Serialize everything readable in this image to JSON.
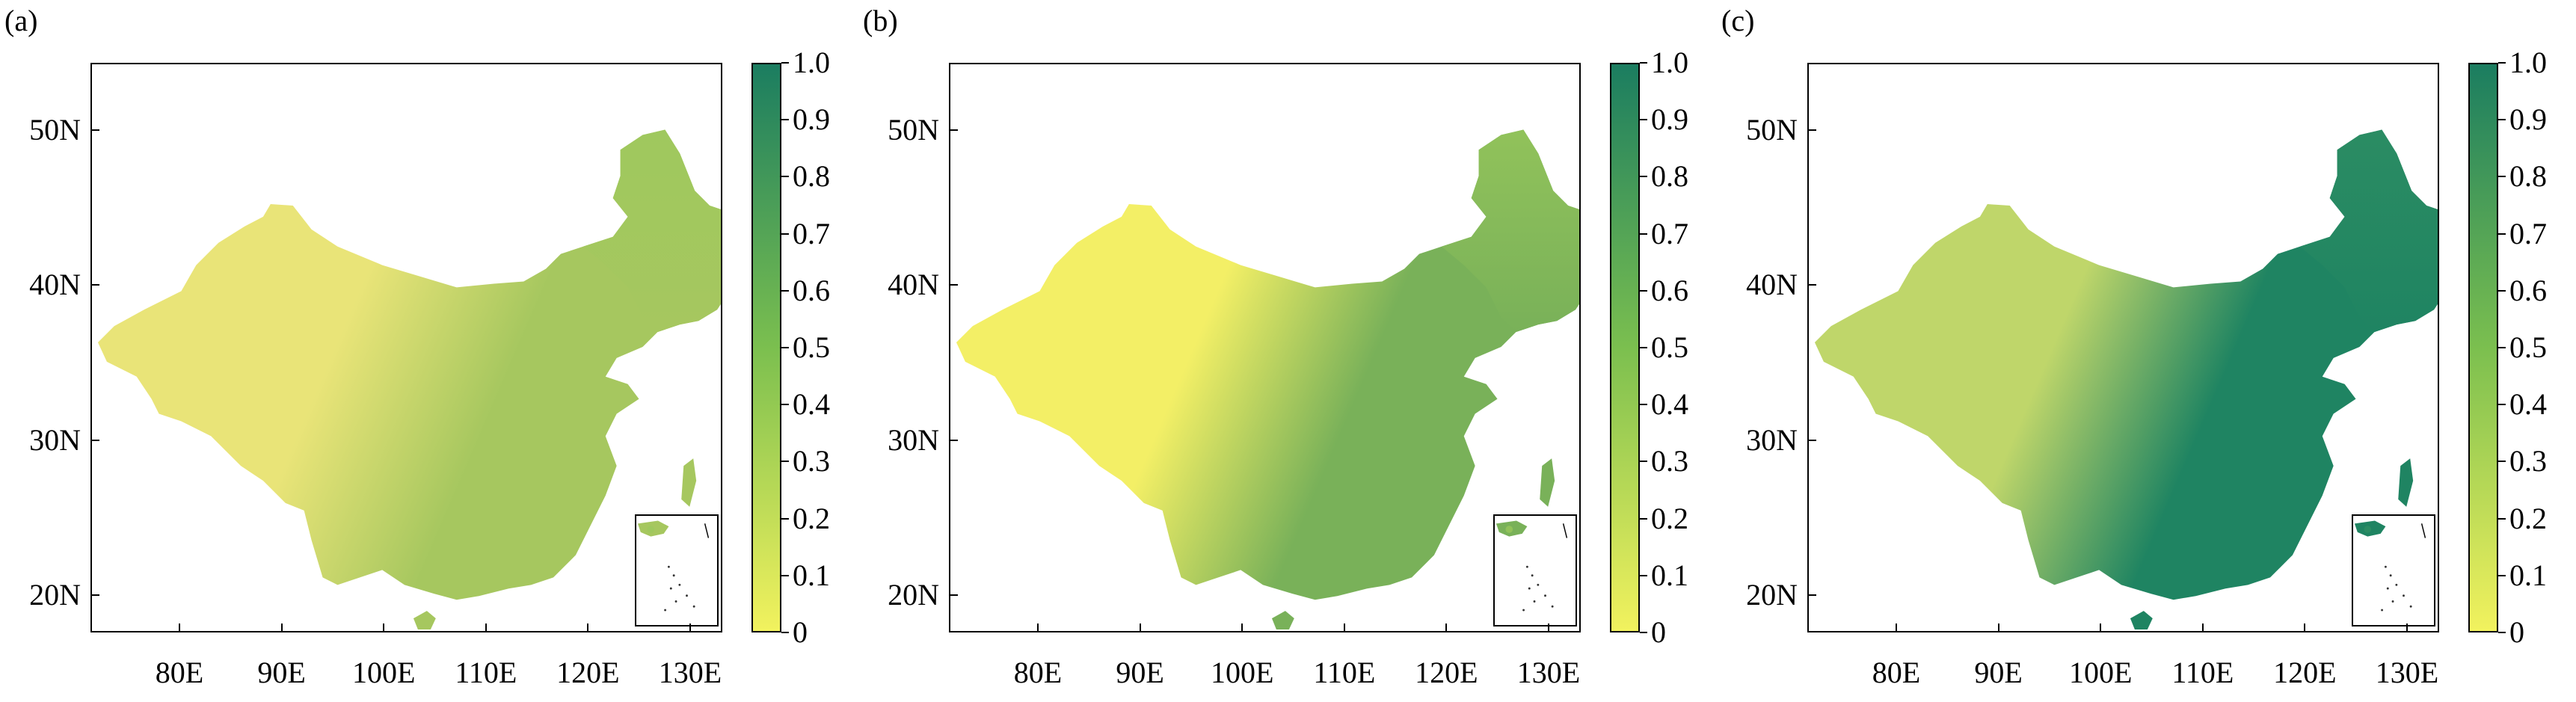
{
  "panels": [
    {
      "letter": "(a)",
      "colorbar_ticks": [
        "0",
        "0.1",
        "0.2",
        "0.3",
        "0.4",
        "0.5",
        "0.6",
        "0.7",
        "0.8",
        "0.9",
        "1.0"
      ]
    },
    {
      "letter": "(b)",
      "colorbar_ticks": [
        "0",
        "0.1",
        "0.2",
        "0.3",
        "0.4",
        "0.5",
        "0.6",
        "0.7",
        "0.8",
        "0.9",
        "1.0"
      ]
    },
    {
      "letter": "(c)",
      "colorbar_ticks": [
        "0",
        "0.1",
        "0.2",
        "0.3",
        "0.4",
        "0.5",
        "0.6",
        "0.7",
        "0.8",
        "0.9",
        "1.0"
      ]
    }
  ],
  "y_ticks": [
    "50N",
    "40N",
    "30N",
    "20N"
  ],
  "x_ticks": [
    "80E",
    "90E",
    "100E",
    "110E",
    "120E",
    "130E"
  ],
  "colorbar": {
    "min": 0,
    "max": 1.0,
    "low_color": "#f2f25e",
    "mid_color": "#7bbf4f",
    "high_color": "#1b7d60"
  },
  "panel_fill": {
    "a": {
      "west": "#e9e478",
      "east": "#a6c75f",
      "northeast": "#9fc85e"
    },
    "b": {
      "west": "#f3ef66",
      "east": "#79b159",
      "northeast": "#91c25a"
    },
    "c": {
      "west": "#bfd66a",
      "east": "#1f8462",
      "northeast": "#2b8c63"
    }
  }
}
